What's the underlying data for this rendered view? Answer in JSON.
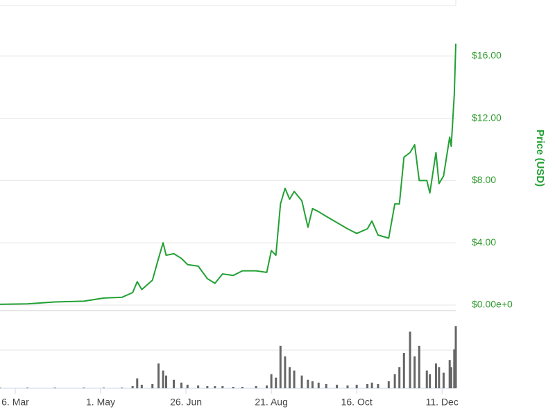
{
  "chart_data": {
    "type": "line",
    "y_axis_label": "Price (USD)",
    "xlim": [
      55,
      354
    ],
    "xticks": [
      {
        "value": 65,
        "label": "6. Mar"
      },
      {
        "value": 121,
        "label": "1. May"
      },
      {
        "value": 177,
        "label": "26. Jun"
      },
      {
        "value": 233,
        "label": "21. Aug"
      },
      {
        "value": 289,
        "label": "16. Oct"
      },
      {
        "value": 345,
        "label": "11. Dec"
      }
    ],
    "ylim": [
      0,
      19.6
    ],
    "yticks": [
      {
        "value": 0,
        "label": "$0.00e+0"
      },
      {
        "value": 4,
        "label": "$4.00"
      },
      {
        "value": 8,
        "label": "$8.00"
      },
      {
        "value": 12,
        "label": "$12.00"
      },
      {
        "value": 16,
        "label": "$16.00"
      }
    ],
    "grid": true,
    "x": [
      55,
      73,
      91,
      110,
      123,
      135,
      142,
      145,
      148,
      155,
      159,
      162,
      164,
      169,
      174,
      178,
      185,
      191,
      196,
      201,
      208,
      214,
      223,
      230,
      233,
      236,
      239,
      242,
      245,
      248,
      253,
      257,
      260,
      264,
      269,
      276,
      283,
      289,
      296,
      299,
      303,
      310,
      314,
      317,
      320,
      324,
      327,
      330,
      335,
      337,
      341,
      343,
      346,
      350,
      351,
      353,
      354
    ],
    "series": [
      {
        "name": "Price",
        "color": "#22a033",
        "values": [
          0.05,
          0.08,
          0.2,
          0.25,
          0.45,
          0.5,
          0.8,
          1.5,
          1.0,
          1.6,
          3.0,
          4.0,
          3.2,
          3.3,
          3.0,
          2.6,
          2.5,
          1.7,
          1.4,
          2.0,
          1.9,
          2.2,
          2.2,
          2.1,
          3.5,
          3.2,
          6.5,
          7.5,
          6.8,
          7.3,
          6.7,
          5.0,
          6.2,
          6.0,
          5.7,
          5.3,
          4.9,
          4.6,
          4.9,
          5.4,
          4.5,
          4.3,
          6.5,
          6.5,
          9.5,
          9.8,
          10.3,
          8.0,
          8.0,
          7.2,
          9.8,
          7.8,
          8.3,
          10.8,
          10.2,
          13.5,
          16.8
        ]
      },
      {
        "name": "Volume",
        "color": "#666666",
        "axis": "y2",
        "values": [
          1,
          1,
          1,
          1,
          1,
          1,
          3,
          14,
          5,
          6,
          35,
          25,
          18,
          12,
          8,
          5,
          4,
          3,
          3,
          3,
          2,
          2,
          3,
          4,
          20,
          15,
          60,
          45,
          30,
          25,
          18,
          12,
          10,
          8,
          6,
          5,
          4,
          5,
          6,
          8,
          6,
          10,
          20,
          30,
          50,
          80,
          45,
          60,
          25,
          20,
          35,
          30,
          22,
          40,
          30,
          55,
          88
        ]
      }
    ],
    "y2lim": [
      0,
      100
    ]
  }
}
